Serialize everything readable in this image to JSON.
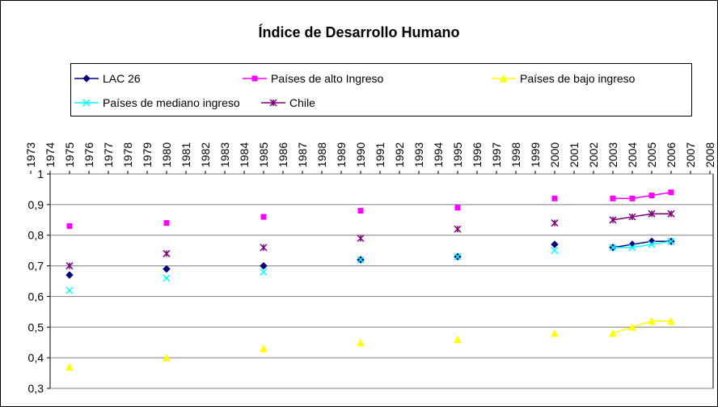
{
  "chart_data": {
    "type": "line",
    "title": "Índice de Desarrollo Humano",
    "x": [
      1975,
      1980,
      1985,
      1990,
      1995,
      2000,
      2003,
      2004,
      2005,
      2006
    ],
    "series": [
      {
        "name": "LAC 26",
        "color": "#000080",
        "marker": "diamond",
        "values": [
          0.67,
          0.69,
          0.7,
          0.72,
          0.73,
          0.77,
          0.76,
          0.77,
          0.78,
          0.78
        ]
      },
      {
        "name": "Países de alto Ingreso",
        "color": "#ff00ff",
        "marker": "square",
        "values": [
          0.83,
          0.84,
          0.86,
          0.88,
          0.89,
          0.92,
          0.92,
          0.92,
          0.93,
          0.94
        ]
      },
      {
        "name": "Países de bajo ingreso",
        "color": "#ffff00",
        "marker": "triangle",
        "values": [
          0.37,
          0.4,
          0.43,
          0.45,
          0.46,
          0.48,
          0.48,
          0.5,
          0.52,
          0.52
        ]
      },
      {
        "name": "Países de mediano ingreso",
        "color": "#00ffff",
        "marker": "x",
        "values": [
          0.62,
          0.66,
          0.68,
          0.72,
          0.73,
          0.75,
          0.76,
          0.76,
          0.77,
          0.78
        ]
      },
      {
        "name": "Chile",
        "color": "#800080",
        "marker": "star",
        "values": [
          0.7,
          0.74,
          0.76,
          0.79,
          0.82,
          0.84,
          0.85,
          0.86,
          0.87,
          0.87
        ]
      }
    ],
    "xlim": [
      1973,
      2008
    ],
    "xticks": [
      1973,
      1974,
      1975,
      1976,
      1977,
      1978,
      1979,
      1980,
      1981,
      1982,
      1983,
      1984,
      1985,
      1986,
      1987,
      1988,
      1989,
      1990,
      1991,
      1992,
      1993,
      1994,
      1995,
      1996,
      1997,
      1998,
      1999,
      2000,
      2001,
      2002,
      2003,
      2004,
      2005,
      2006,
      2007,
      2008
    ],
    "ylim": [
      0.3,
      1
    ],
    "yticks": [
      {
        "value": 0.3,
        "label": "0,3"
      },
      {
        "value": 0.4,
        "label": "0,4"
      },
      {
        "value": 0.5,
        "label": "0,5"
      },
      {
        "value": 0.6,
        "label": "0,6"
      },
      {
        "value": 0.7,
        "label": "0,7"
      },
      {
        "value": 0.8,
        "label": "0,8"
      },
      {
        "value": 0.9,
        "label": "0,9"
      },
      1
    ],
    "grid": true,
    "legend": "top"
  }
}
